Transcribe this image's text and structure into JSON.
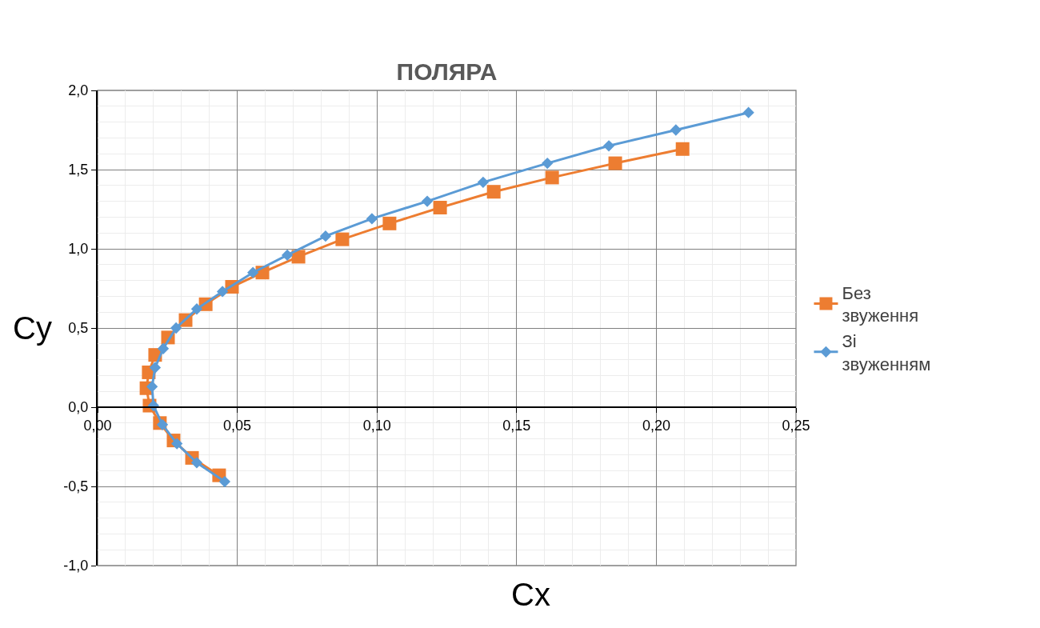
{
  "chart_data": {
    "type": "line",
    "title": "ПОЛЯРА",
    "xlabel": "Cx",
    "ylabel": "Cy",
    "xlim": [
      0,
      0.25
    ],
    "xticks": [
      {
        "value": 0,
        "label": "0,00"
      },
      {
        "value": 0.05,
        "label": "0,05"
      },
      {
        "value": 0.1,
        "label": "0,10"
      },
      {
        "value": 0.15,
        "label": "0,15"
      },
      {
        "value": 0.2,
        "label": "0,20"
      },
      {
        "value": 0.25,
        "label": "0,25"
      }
    ],
    "ylim": [
      -1,
      2
    ],
    "yticks": [
      {
        "value": -1,
        "label": "-1,0"
      },
      {
        "value": -0.5,
        "label": "-0,5"
      },
      {
        "value": 0,
        "label": "0,0"
      },
      {
        "value": 0.5,
        "label": "0,5"
      },
      {
        "value": 1,
        "label": "1,0"
      },
      {
        "value": 1.5,
        "label": "1,5"
      },
      {
        "value": 2,
        "label": "2,0"
      }
    ],
    "grid": true,
    "legend": "right",
    "series": [
      {
        "name": "Без звуження",
        "color": "#ed7d31",
        "marker": "square",
        "x": [
          0.0435,
          0.0338,
          0.0272,
          0.0223,
          0.0186,
          0.0175,
          0.0183,
          0.0206,
          0.0252,
          0.0315,
          0.0387,
          0.0481,
          0.059,
          0.0719,
          0.0876,
          0.1045,
          0.1226,
          0.1418,
          0.1627,
          0.1853,
          0.2094
        ],
        "values": [
          -0.43,
          -0.32,
          -0.21,
          -0.1,
          0.01,
          0.12,
          0.22,
          0.33,
          0.44,
          0.55,
          0.65,
          0.76,
          0.85,
          0.95,
          1.06,
          1.16,
          1.26,
          1.36,
          1.45,
          1.54,
          1.63
        ]
      },
      {
        "name": "Зі звуженням",
        "color": "#5b9bd5",
        "marker": "diamond",
        "x": [
          0.0455,
          0.0355,
          0.0284,
          0.0232,
          0.02,
          0.0195,
          0.0206,
          0.0235,
          0.0281,
          0.0355,
          0.0447,
          0.0556,
          0.0679,
          0.0816,
          0.0982,
          0.118,
          0.138,
          0.161,
          0.183,
          0.207,
          0.233
        ],
        "values": [
          -0.47,
          -0.35,
          -0.23,
          -0.11,
          0.01,
          0.13,
          0.25,
          0.37,
          0.5,
          0.62,
          0.73,
          0.85,
          0.96,
          1.08,
          1.19,
          1.3,
          1.42,
          1.54,
          1.65,
          1.75,
          1.86
        ]
      }
    ]
  }
}
